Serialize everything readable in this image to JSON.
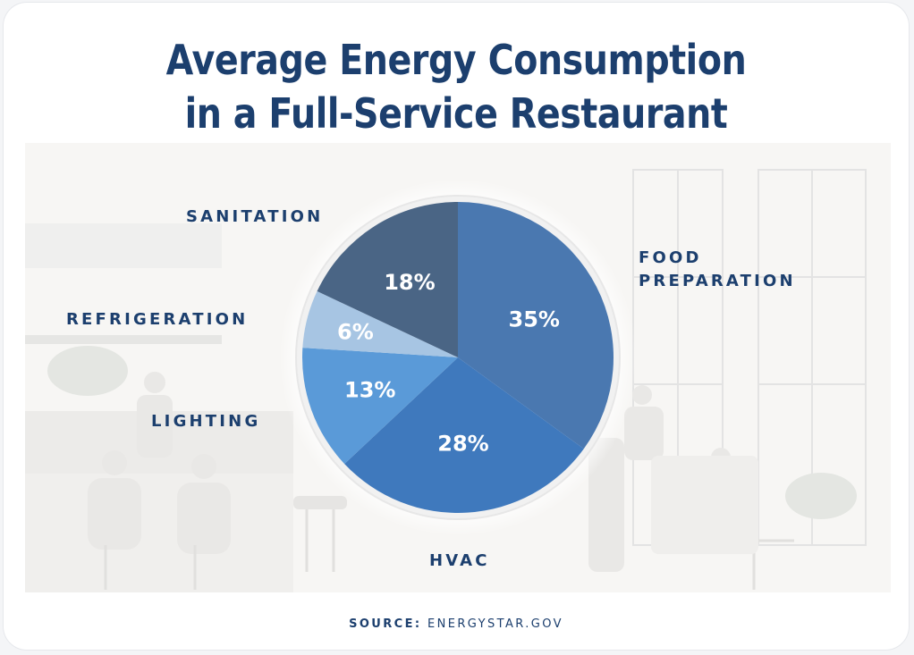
{
  "title_line1": "Average Energy Consumption",
  "title_line2": "in a Full-Service Restaurant",
  "source_label": "SOURCE:",
  "source_value": "ENERGYSTAR.GOV",
  "colors": {
    "title": "#1c3f6e",
    "food_preparation": "#4a78b0",
    "hvac": "#3f79bd",
    "lighting": "#5a9ad8",
    "refrigeration": "#a7c5e3",
    "sanitation": "#4a6585"
  },
  "chart_data": {
    "type": "pie",
    "title": "Average Energy Consumption in a Full-Service Restaurant",
    "slices": [
      {
        "label": "FOOD PREPARATION",
        "value": 35,
        "display": "35%"
      },
      {
        "label": "HVAC",
        "value": 28,
        "display": "28%"
      },
      {
        "label": "LIGHTING",
        "value": 13,
        "display": "13%"
      },
      {
        "label": "REFRIGERATION",
        "value": 6,
        "display": "6%"
      },
      {
        "label": "SANITATION",
        "value": 18,
        "display": "18%"
      }
    ],
    "start": "12 o'clock",
    "direction": "clockwise",
    "legend": "none (category labels placed around the pie)"
  }
}
